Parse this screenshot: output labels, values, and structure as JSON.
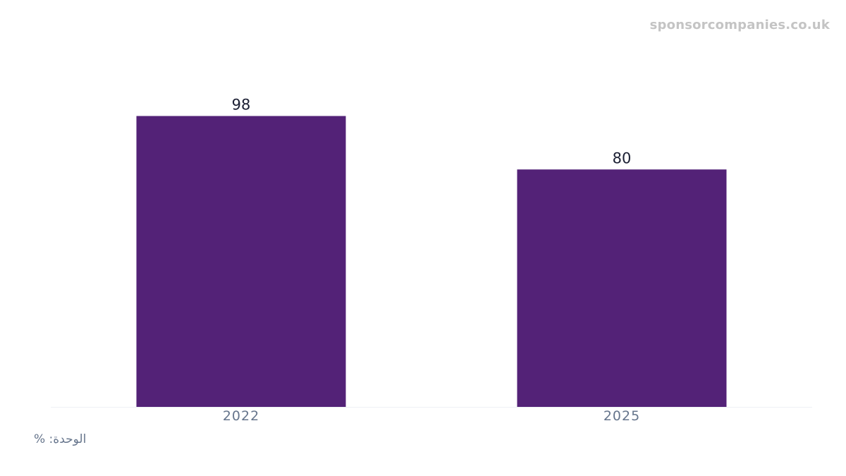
{
  "watermark": "sponsorcompanies.co.uk",
  "unit_note": "الوحدة: %",
  "colors": {
    "bar": "#532277",
    "value_label": "#1b1f33",
    "tick_label": "#66758c",
    "baseline": "#eef1f5"
  },
  "chart_data": {
    "type": "bar",
    "categories": [
      "2022",
      "2025"
    ],
    "values": [
      98,
      80
    ],
    "title": "",
    "xlabel": "",
    "ylabel": "",
    "ylim": [
      0,
      100
    ],
    "grid": false,
    "data_labels": true
  }
}
